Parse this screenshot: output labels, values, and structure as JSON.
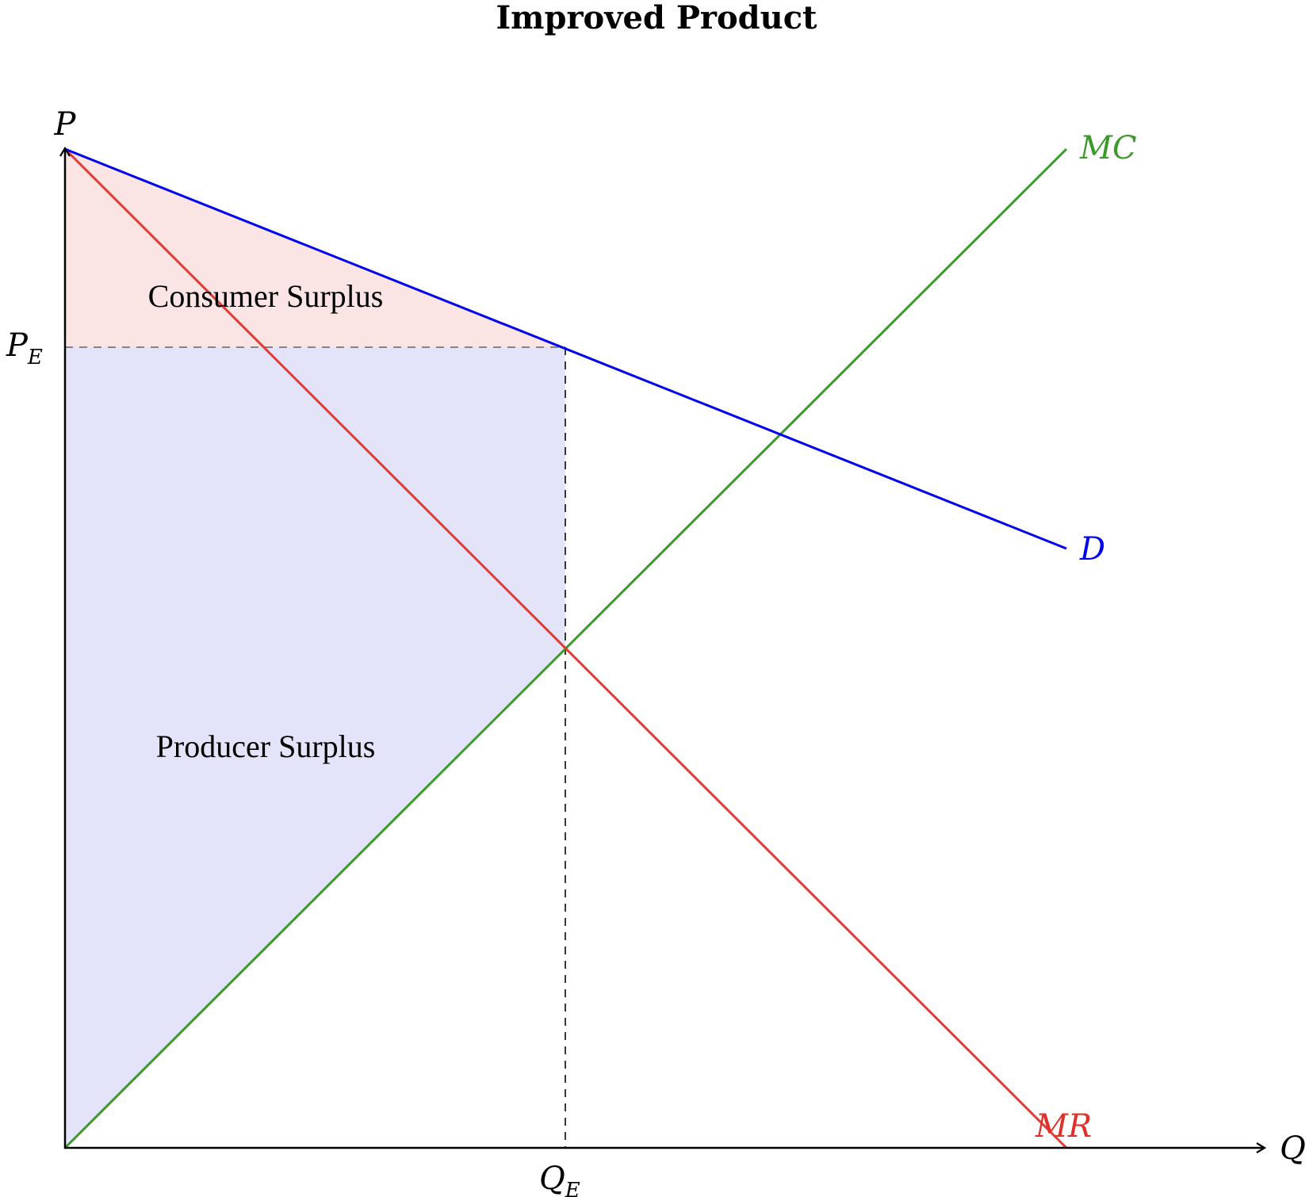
{
  "title": "Improved Product",
  "axes": {
    "y_label": "P",
    "x_label": "Q",
    "price_tick_main": "P",
    "price_tick_sub": "E",
    "quantity_tick_main": "Q",
    "quantity_tick_sub": "E"
  },
  "curves": {
    "mc": {
      "label": "MC",
      "color": "#3a9a2a"
    },
    "demand": {
      "label": "D",
      "color": "#0000ee"
    },
    "mr": {
      "label": "MR",
      "color": "#e0302a"
    }
  },
  "regions": {
    "consumer_surplus": {
      "label": "Consumer Surplus",
      "color": "#f6caca"
    },
    "producer_surplus": {
      "label": "Producer Surplus",
      "color": "#ccccf4"
    }
  }
}
